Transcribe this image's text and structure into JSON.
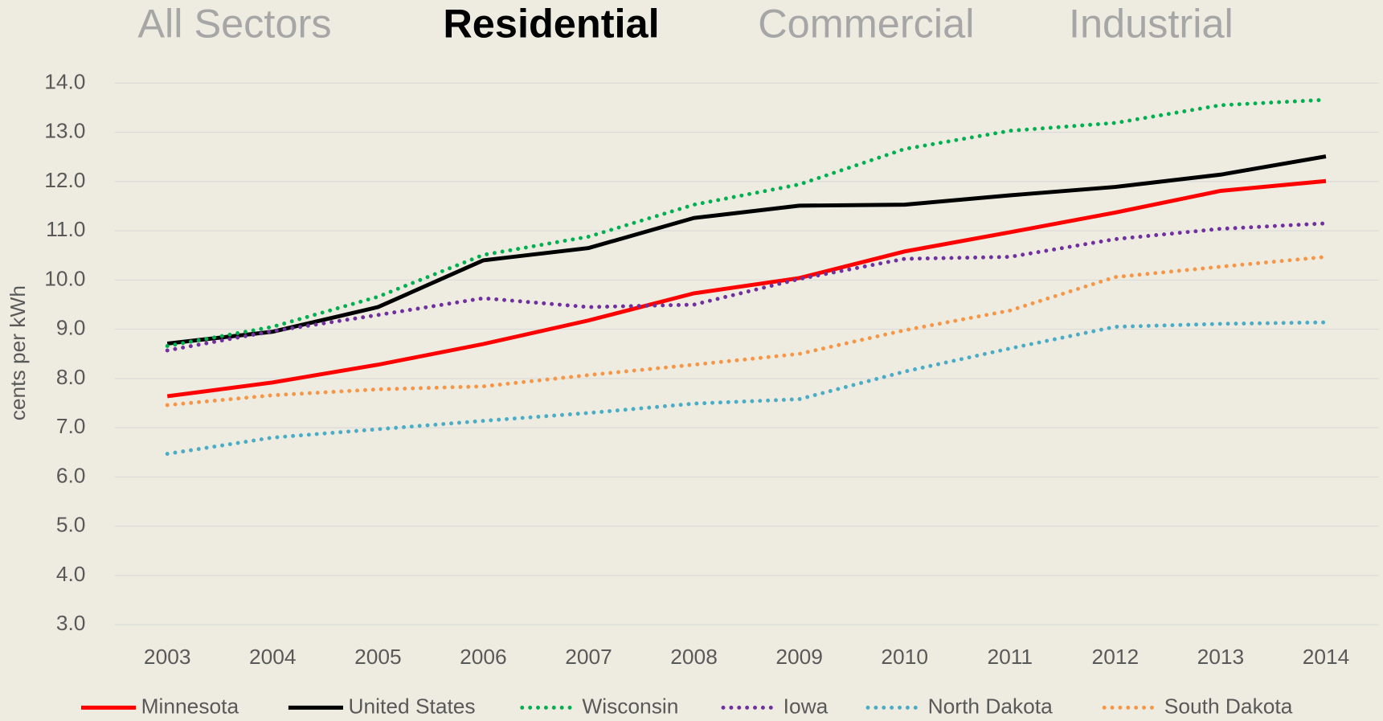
{
  "chart_data": {
    "type": "line",
    "tabs": [
      "All Sectors",
      "Residential",
      "Commercial",
      "Industrial"
    ],
    "active_tab": 1,
    "y_label": "cents per kWh",
    "categories": [
      "2003",
      "2004",
      "2005",
      "2006",
      "2007",
      "2008",
      "2009",
      "2010",
      "2011",
      "2012",
      "2013",
      "2014"
    ],
    "series": [
      {
        "name": "Minnesota",
        "color": "#ff0000",
        "dash": "solid",
        "values": [
          7.64,
          7.92,
          8.28,
          8.7,
          9.18,
          9.73,
          10.04,
          10.58,
          10.97,
          11.37,
          11.81,
          12.01
        ]
      },
      {
        "name": "United States",
        "color": "#000000",
        "dash": "solid",
        "values": [
          8.71,
          8.95,
          9.45,
          10.4,
          10.65,
          11.26,
          11.51,
          11.53,
          11.72,
          11.89,
          12.14,
          12.51
        ]
      },
      {
        "name": "Wisconsin",
        "color": "#00b050",
        "dash": "dotted",
        "values": [
          8.66,
          9.05,
          9.66,
          10.51,
          10.88,
          11.53,
          11.94,
          12.66,
          13.03,
          13.19,
          13.55,
          13.66
        ]
      },
      {
        "name": "Iowa",
        "color": "#7030a0",
        "dash": "dotted",
        "values": [
          8.57,
          8.96,
          9.29,
          9.63,
          9.45,
          9.5,
          10.02,
          10.43,
          10.47,
          10.83,
          11.04,
          11.15
        ]
      },
      {
        "name": "North Dakota",
        "color": "#4bacc6",
        "dash": "dotted",
        "values": [
          6.47,
          6.8,
          6.97,
          7.14,
          7.3,
          7.49,
          7.58,
          8.14,
          8.61,
          9.05,
          9.11,
          9.14
        ]
      },
      {
        "name": "South Dakota",
        "color": "#f79646",
        "dash": "dotted",
        "values": [
          7.46,
          7.66,
          7.78,
          7.84,
          8.07,
          8.28,
          8.5,
          8.98,
          9.38,
          10.06,
          10.27,
          10.47
        ]
      }
    ],
    "ylim": [
      3,
      14
    ],
    "yticks": [
      {
        "value": 3,
        "label": "3.0"
      },
      {
        "value": 4,
        "label": "4.0"
      },
      {
        "value": 5,
        "label": "5.0"
      },
      {
        "value": 6,
        "label": "6.0"
      },
      {
        "value": 7,
        "label": "7.0"
      },
      {
        "value": 8,
        "label": "8.0"
      },
      {
        "value": 9,
        "label": "9.0"
      },
      {
        "value": 10,
        "label": "10.0"
      },
      {
        "value": 11,
        "label": "11.0"
      },
      {
        "value": 12,
        "label": "12.0"
      },
      {
        "value": 13,
        "label": "13.0"
      },
      {
        "value": 14,
        "label": "14.0"
      }
    ],
    "grid": true
  }
}
